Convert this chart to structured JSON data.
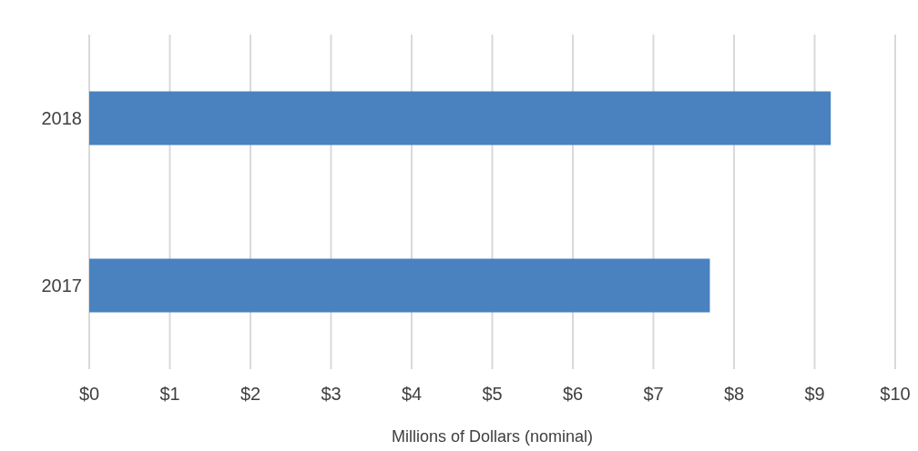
{
  "chart_data": {
    "type": "bar",
    "orientation": "horizontal",
    "categories": [
      "2018",
      "2017"
    ],
    "values": [
      9.2,
      7.7
    ],
    "color": "#4a81bf",
    "xlim": [
      0,
      10
    ],
    "xticks": [
      {
        "value": 0,
        "label": "$0"
      },
      {
        "value": 1,
        "label": "$1"
      },
      {
        "value": 2,
        "label": "$2"
      },
      {
        "value": 3,
        "label": "$3"
      },
      {
        "value": 4,
        "label": "$4"
      },
      {
        "value": 5,
        "label": "$5"
      },
      {
        "value": 6,
        "label": "$6"
      },
      {
        "value": 7,
        "label": "$7"
      },
      {
        "value": 8,
        "label": "$8"
      },
      {
        "value": 9,
        "label": "$9"
      },
      {
        "value": 10,
        "label": "$10"
      }
    ],
    "xlabel": "Millions of Dollars (nominal)",
    "grid": "x"
  }
}
